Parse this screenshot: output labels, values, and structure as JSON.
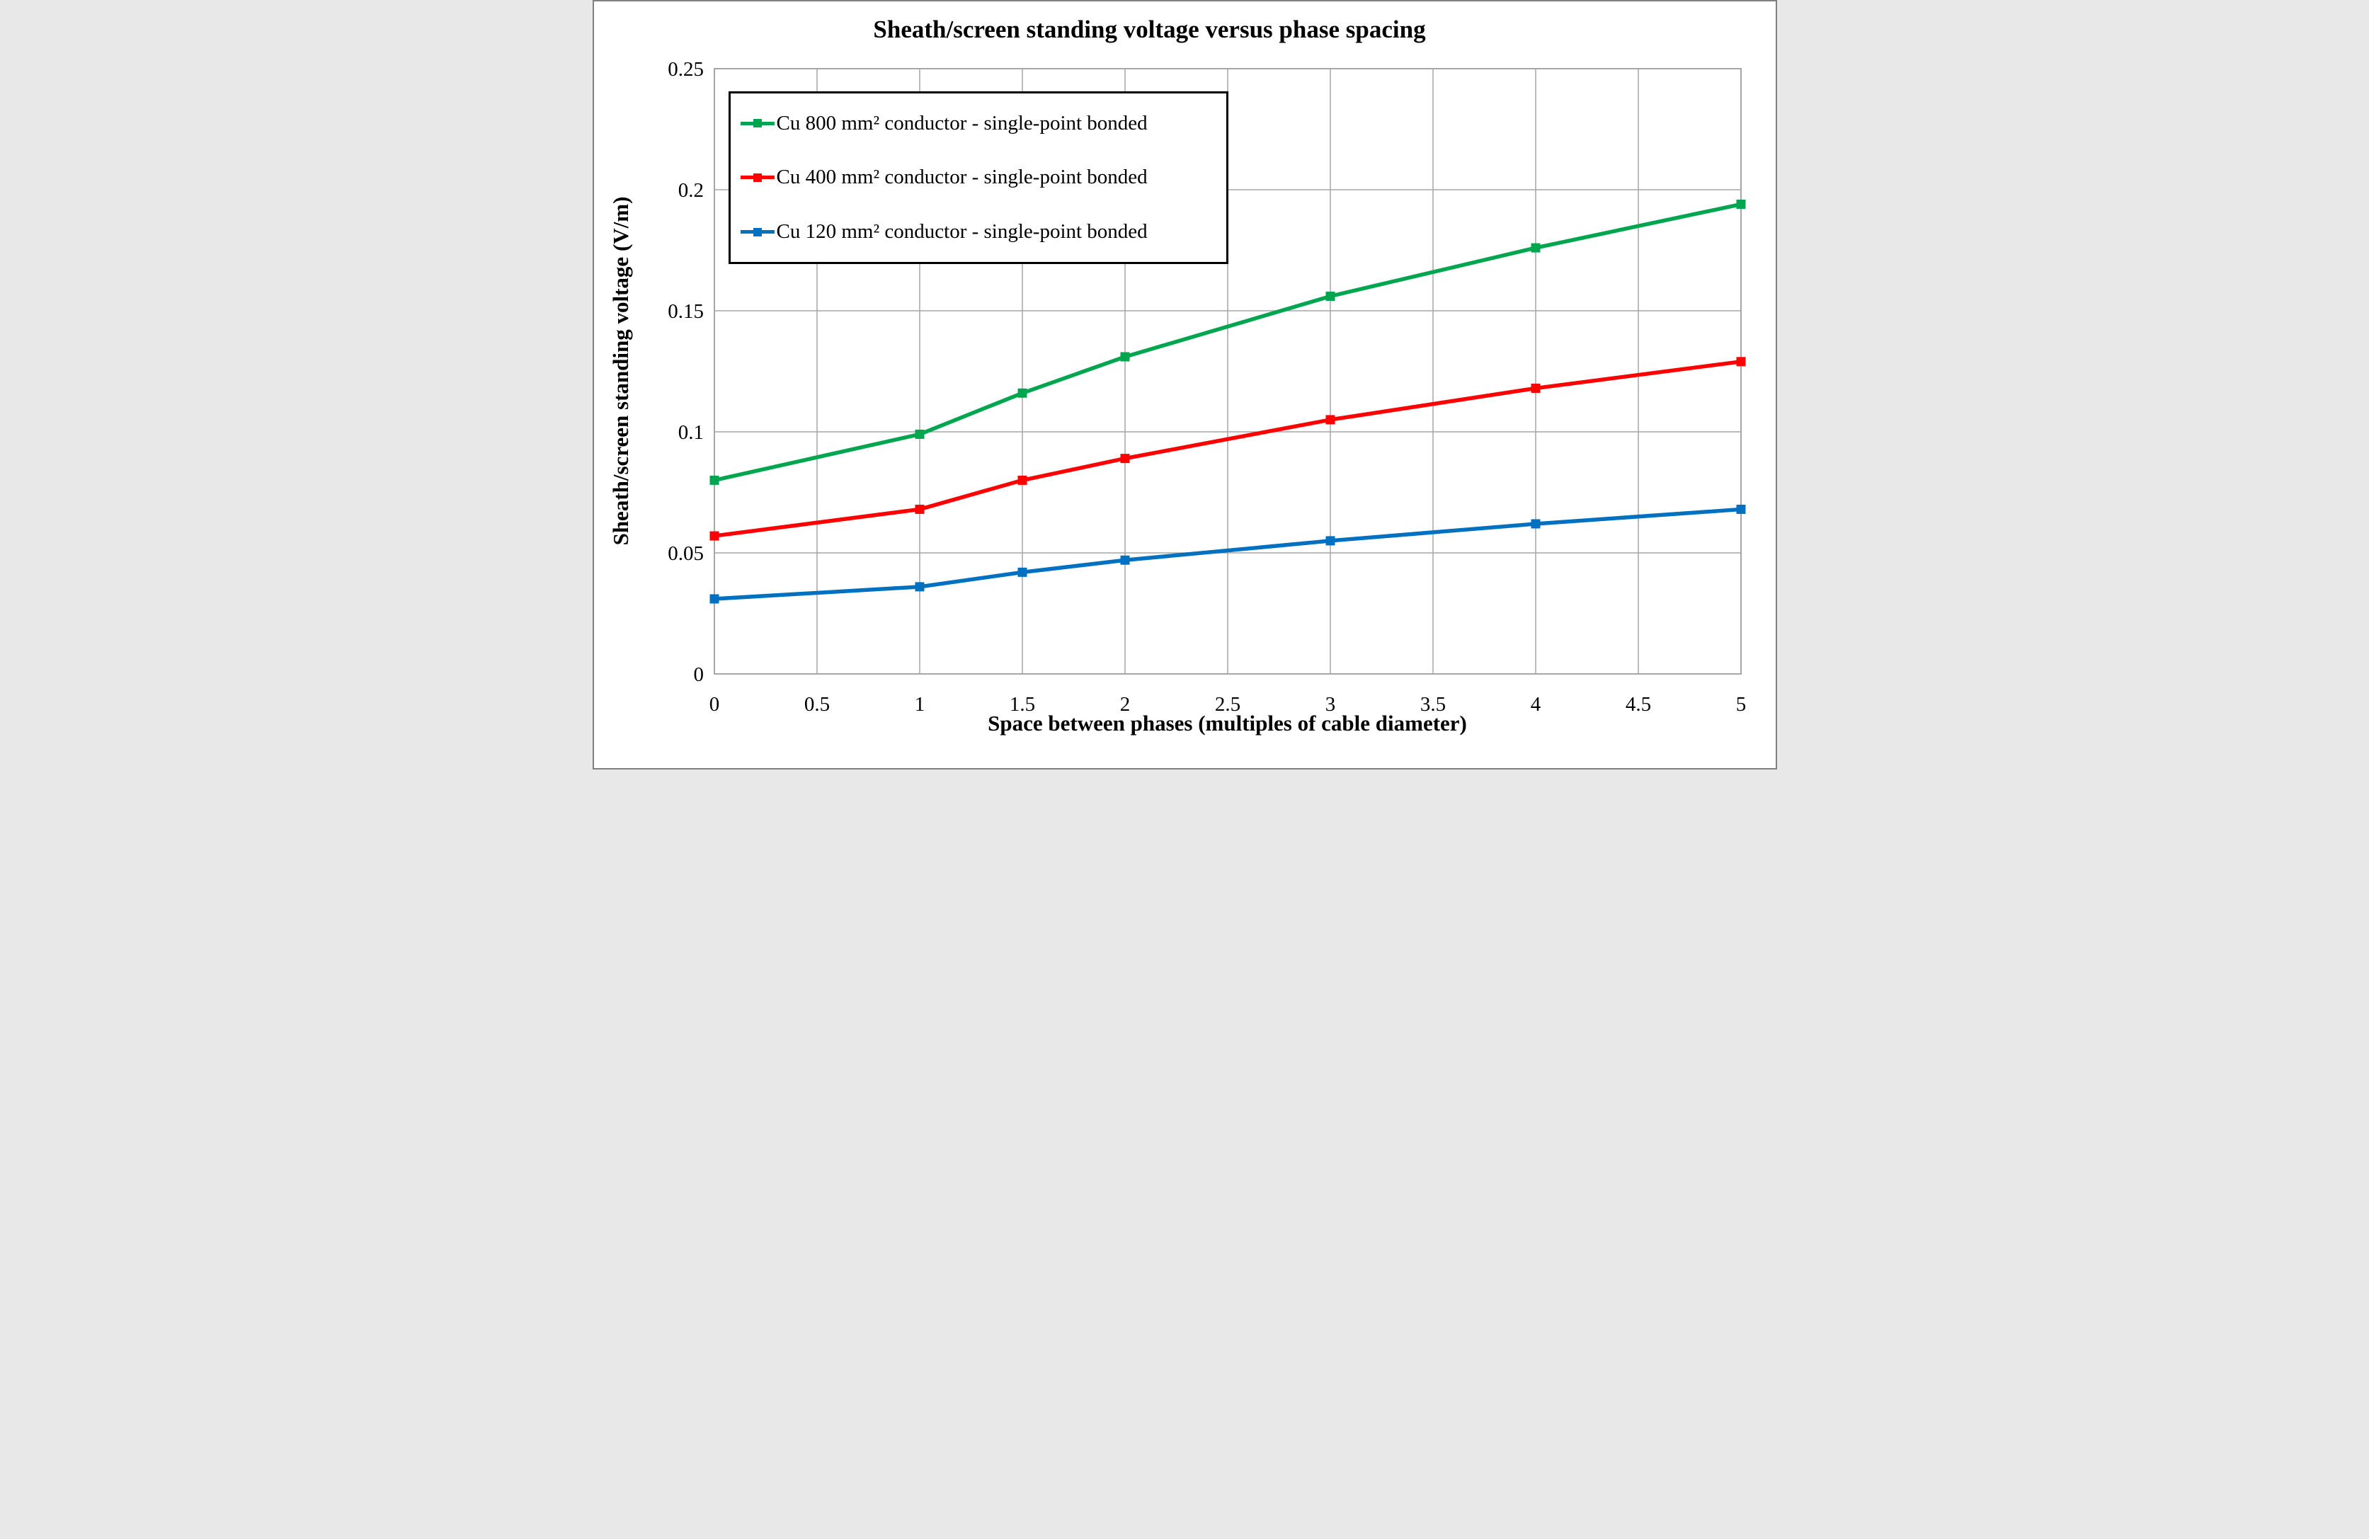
{
  "figure": {
    "background": "#ffffff",
    "border_color": "#808080"
  },
  "chart_data": {
    "type": "line",
    "title": "Sheath/screen standing voltage versus phase spacing",
    "xlabel": "Space between phases (multiples of cable diameter)",
    "ylabel": "Sheath/screen standing voltage (V/m)",
    "x": [
      0,
      1,
      1.5,
      2,
      3,
      4,
      5
    ],
    "series": [
      {
        "name": "Cu 800 mm² conductor - single-point bonded",
        "color": "#00a64f",
        "values": [
          0.08,
          0.099,
          0.116,
          0.131,
          0.156,
          0.176,
          0.194
        ]
      },
      {
        "name": "Cu 400 mm² conductor - single-point bonded",
        "color": "#fe0000",
        "values": [
          0.057,
          0.068,
          0.08,
          0.089,
          0.105,
          0.118,
          0.129
        ]
      },
      {
        "name": "Cu 120 mm² conductor - single-point bonded",
        "color": "#0070c0",
        "values": [
          0.031,
          0.036,
          0.042,
          0.047,
          0.055,
          0.062,
          0.068
        ]
      }
    ],
    "xlim": [
      0,
      5
    ],
    "ylim": [
      0,
      0.25
    ],
    "xticks": [
      0,
      0.5,
      1,
      1.5,
      2,
      2.5,
      3,
      3.5,
      4,
      4.5,
      5
    ],
    "xtick_labels": [
      "0",
      "0.5",
      "1",
      "1.5",
      "2",
      "2.5",
      "3",
      "3.5",
      "4",
      "4.5",
      "5"
    ],
    "yticks": [
      0,
      0.05,
      0.1,
      0.15,
      0.2,
      0.25
    ],
    "ytick_labels": [
      "0",
      "0.05",
      "0.1",
      "0.15",
      "0.2",
      "0.25"
    ],
    "grid": true,
    "gridline_color": "#a6a6a6",
    "legend_position": "top-left",
    "marker": "square"
  }
}
